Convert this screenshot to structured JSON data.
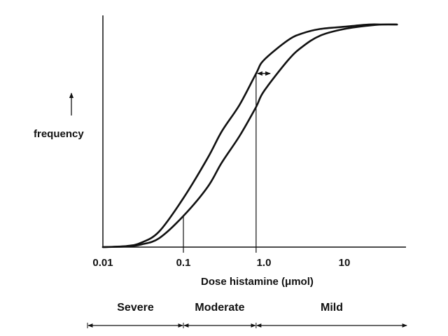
{
  "chart_data": {
    "type": "line",
    "title": "",
    "xlabel": "Dose histamine (μmol)",
    "ylabel": "frequency",
    "x_scale": "log",
    "xlim": [
      0.01,
      50
    ],
    "x_ticks": [
      {
        "value": 0.01,
        "label": "0.01"
      },
      {
        "value": 0.1,
        "label": "0.1"
      },
      {
        "value": 1.0,
        "label": "1.0"
      },
      {
        "value": 10,
        "label": "10"
      }
    ],
    "grid": false,
    "legend": "none",
    "series": [
      {
        "x": [
          0.01,
          0.02,
          0.03,
          0.05,
          0.1,
          0.2,
          0.3,
          0.5,
          0.8,
          1,
          2,
          3,
          5,
          10,
          20,
          30,
          45
        ],
        "y": [
          0,
          0.005,
          0.02,
          0.07,
          0.22,
          0.4,
          0.52,
          0.64,
          0.78,
          0.84,
          0.93,
          0.96,
          0.98,
          0.99,
          1.0,
          1.0,
          1.0
        ]
      },
      {
        "x": [
          0.01,
          0.02,
          0.03,
          0.05,
          0.1,
          0.2,
          0.3,
          0.5,
          0.8,
          1,
          2,
          3,
          5,
          10,
          20,
          30,
          45
        ],
        "y": [
          0,
          0.003,
          0.012,
          0.04,
          0.14,
          0.27,
          0.38,
          0.5,
          0.63,
          0.7,
          0.84,
          0.9,
          0.95,
          0.98,
          0.995,
          1.0,
          1.0
        ]
      }
    ],
    "reference_lines": [
      {
        "x": 0.1,
        "y_top": 0.14
      },
      {
        "x": 0.8,
        "y_top": 0.78
      }
    ],
    "shift_arrow": {
      "x_from": 0.8,
      "x_to": 1.2,
      "y": 0.78
    },
    "categories": [
      {
        "label": "Severe",
        "from": 0.01,
        "to": 0.1
      },
      {
        "label": "Moderate",
        "from": 0.1,
        "to": 0.8
      },
      {
        "label": "Mild",
        "from": 0.8,
        "to": 45
      }
    ]
  }
}
